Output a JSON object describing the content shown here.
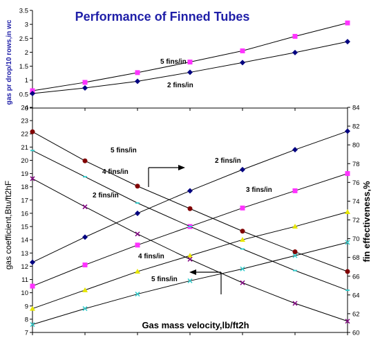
{
  "chart_data": [
    {
      "type": "line",
      "title": "Performance of Finned Tubes",
      "ylabel": "gas pr drop/10 rows,in wc",
      "ylim": [
        0,
        3.5
      ],
      "yticks": [
        "0",
        "0.5",
        "1",
        "1.5",
        "2",
        "2.5",
        "3",
        "3.5"
      ],
      "grid": false,
      "series": [
        {
          "name": "5 fins/in",
          "color": "#ff33ff",
          "marker": "square",
          "values": [
            0.62,
            0.92,
            1.27,
            1.65,
            2.05,
            2.57,
            3.05
          ]
        },
        {
          "name": "2 fins/in",
          "color": "#000080",
          "marker": "diamond",
          "values": [
            0.52,
            0.72,
            0.96,
            1.28,
            1.63,
            1.99,
            2.38
          ]
        }
      ]
    },
    {
      "type": "line",
      "xlabel": "Gas mass velocity,lb/ft2h",
      "ylabel": "gas coefficient,Btu/ft2hF",
      "ylim": [
        7,
        24
      ],
      "yticks": [
        "7",
        "8",
        "9",
        "10",
        "11",
        "12",
        "13",
        "14",
        "15",
        "16",
        "17",
        "18",
        "19",
        "20",
        "21",
        "22",
        "23",
        "24"
      ],
      "y2label": "fin effectiveness,%",
      "y2lim": [
        60,
        84
      ],
      "y2ticks": [
        "60",
        "62",
        "64",
        "66",
        "68",
        "70",
        "72",
        "74",
        "76",
        "78",
        "80",
        "82",
        "84"
      ],
      "grid": false,
      "series": [
        {
          "name": "2 fins/in",
          "axis": "left",
          "color": "#000080",
          "marker": "diamond",
          "values": [
            12.3,
            14.2,
            16.0,
            17.7,
            19.3,
            20.8,
            22.2
          ]
        },
        {
          "name": "4 fins/in",
          "axis": "left",
          "color": "#ff33ff",
          "marker": "square",
          "values": [
            10.5,
            12.1,
            13.6,
            15.0,
            16.4,
            17.7,
            19.0
          ]
        },
        {
          "name": "5 fins/in",
          "axis": "left",
          "color": "#e6e600",
          "marker": "triangle",
          "values": [
            8.8,
            10.2,
            11.6,
            12.8,
            14.0,
            15.0,
            16.1
          ]
        },
        {
          "name": "",
          "axis": "left",
          "color": "#33cccc",
          "marker": "x",
          "values": [
            7.6,
            8.8,
            9.9,
            10.9,
            11.8,
            12.8,
            13.8
          ]
        },
        {
          "name": "5 fins/in",
          "axis": "right",
          "color": "#800000",
          "marker": "circle",
          "values": [
            81.4,
            78.3,
            75.6,
            73.2,
            70.8,
            68.6,
            66.5
          ]
        },
        {
          "name": "4 fins/in",
          "axis": "right",
          "color": "#33cccc",
          "marker": "dash",
          "values": [
            79.4,
            76.6,
            73.8,
            71.3,
            68.9,
            66.6,
            64.5
          ]
        },
        {
          "name": "2 fins/in",
          "axis": "right",
          "color": "#800080",
          "marker": "x",
          "values": [
            76.4,
            73.4,
            70.5,
            67.8,
            65.3,
            63.1,
            61.2
          ]
        }
      ]
    }
  ],
  "annotations": {
    "upper_5fins": "5 fins/in",
    "upper_2fins": "2 fins/in",
    "lower_5fins_top": "5 fins/in",
    "lower_4fins_top": "4 fins/in",
    "lower_2fins_left": "2 fins/in",
    "lower_2fins_right": "2 fins/in",
    "lower_3fins": "3 fins/in",
    "lower_4fins_bottom": "4 fins/in",
    "lower_5fins_bottom": "5 fins/in"
  }
}
